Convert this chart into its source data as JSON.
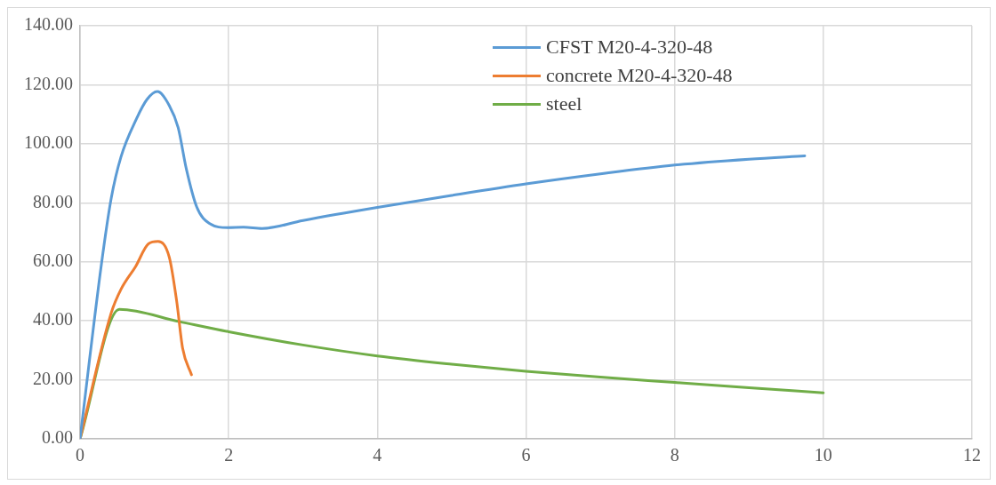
{
  "chart_data": {
    "type": "line",
    "legend": "top right",
    "grid": true,
    "marker": "none",
    "line_style": "solid",
    "xlim": [
      0,
      12
    ],
    "xticks": [
      0,
      2,
      4,
      6,
      8,
      10,
      12
    ],
    "ylim": [
      0,
      140
    ],
    "yticks": [
      {
        "value": 0,
        "label": "0.00"
      },
      {
        "value": 20,
        "label": "20.00"
      },
      {
        "value": 40,
        "label": "40.00"
      },
      {
        "value": 60,
        "label": "60.00"
      },
      {
        "value": 80,
        "label": "80.00"
      },
      {
        "value": 100,
        "label": "100.00"
      },
      {
        "value": 120,
        "label": "120.00"
      },
      {
        "value": 140,
        "label": "140.00"
      }
    ],
    "series": [
      {
        "name": "CFST M20-4-320-48",
        "color": "#5b9bd5",
        "x": [
          0,
          0.29,
          0.42,
          0.55,
          0.76,
          0.9,
          1.04,
          1.2,
          1.32,
          1.43,
          1.57,
          1.74,
          1.99,
          2.2,
          2.45,
          3,
          4,
          5,
          6,
          7,
          8,
          9,
          9.75
        ],
        "values": [
          0,
          59.6,
          81.6,
          95.5,
          108.5,
          115,
          117.7,
          113,
          105.5,
          91.5,
          78.6,
          73,
          71.6,
          71.7,
          71.3,
          74,
          78.4,
          82.5,
          86.4,
          89.8,
          92.8,
          94.8,
          95.9
        ]
      },
      {
        "name": "concrete M20-4-320-48",
        "color": "#ed7d31",
        "x": [
          0,
          0.42,
          0.55,
          0.75,
          0.92,
          1.05,
          1.2,
          1.3,
          1.38,
          1.5
        ],
        "values": [
          0,
          42.7,
          50.6,
          58.5,
          66.1,
          66.9,
          61.6,
          46.7,
          30.7,
          21.7
        ]
      },
      {
        "name": "steel",
        "color": "#70ad47",
        "x": [
          0,
          0.53,
          1.34,
          2,
          3,
          4,
          5,
          6,
          7,
          8,
          9,
          10
        ],
        "values": [
          0,
          43.9,
          39.7,
          36.3,
          31.8,
          28.1,
          25.3,
          22.9,
          20.9,
          19.1,
          17.3,
          15.6
        ]
      }
    ]
  }
}
